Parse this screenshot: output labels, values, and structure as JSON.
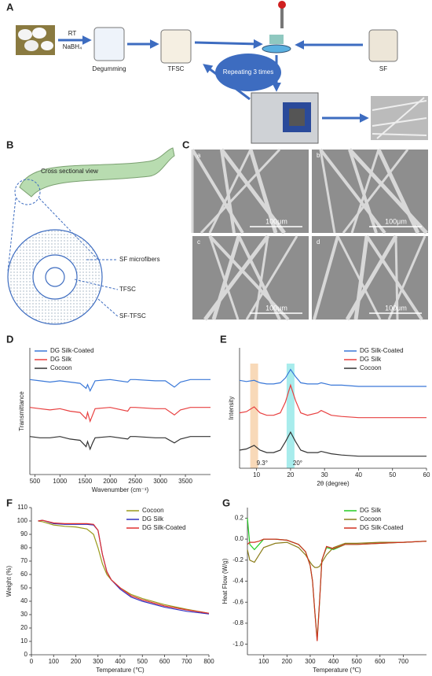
{
  "figure": {
    "A": {
      "label": "A",
      "rt": "RT",
      "reagent": "NaBH₄",
      "degumming": "Degumming",
      "tfsc": "TFSC",
      "sf": "SF",
      "repeat": "Repeating 3 times"
    },
    "B": {
      "label": "B",
      "view": "Cross sectional view",
      "microfibers": "SF microfibers",
      "tfsc": "TFSC",
      "sftfsc": "SF-TFSC"
    },
    "C": {
      "label": "C",
      "images": [
        {
          "label": "a",
          "scale": "100μm"
        },
        {
          "label": "b",
          "scale": "100μm"
        },
        {
          "label": "c",
          "scale": "100μm"
        },
        {
          "label": "d",
          "scale": "100μm"
        }
      ]
    }
  },
  "chart_data": [
    {
      "type": "line",
      "label": "D",
      "xlabel": "Wavenumber (cm⁻¹)",
      "ylabel": "Transmittance",
      "legend": "upper left",
      "xlim": [
        400,
        4000
      ],
      "xticks": [
        500,
        1000,
        1500,
        2000,
        2500,
        3000,
        3500
      ],
      "ylim": [
        0,
        10
      ],
      "x": [
        400,
        600,
        800,
        1000,
        1200,
        1400,
        1520,
        1550,
        1600,
        1650,
        1700,
        2000,
        2350,
        2400,
        2500,
        2900,
        3100,
        3280,
        3400,
        3600,
        4000
      ],
      "series": [
        {
          "name": "DG Silk-Coated",
          "color": "#3a78d8",
          "values": [
            7.5,
            7.4,
            7.3,
            7.4,
            7.3,
            7.2,
            6.8,
            7.1,
            6.6,
            7.0,
            7.4,
            7.5,
            7.3,
            7.5,
            7.5,
            7.4,
            7.4,
            6.9,
            7.3,
            7.5,
            7.5
          ]
        },
        {
          "name": "DG Silk",
          "color": "#e84040",
          "values": [
            5.3,
            5.2,
            5.1,
            5.2,
            5.0,
            4.9,
            4.4,
            4.9,
            4.2,
            4.7,
            5.2,
            5.3,
            5.0,
            5.3,
            5.3,
            5.2,
            5.2,
            4.7,
            5.1,
            5.3,
            5.3
          ]
        },
        {
          "name": "Cocoon",
          "color": "#333333",
          "values": [
            3.0,
            2.9,
            2.9,
            3.0,
            2.8,
            2.7,
            2.2,
            2.6,
            2.0,
            2.5,
            2.9,
            3.0,
            2.8,
            3.0,
            3.0,
            2.9,
            2.9,
            2.5,
            2.8,
            3.0,
            3.0
          ]
        }
      ]
    },
    {
      "type": "line",
      "label": "E",
      "xlabel": "2θ (degree)",
      "ylabel": "Intensity",
      "legend": "upper right",
      "xlim": [
        5,
        60
      ],
      "xticks": [
        10,
        20,
        30,
        40,
        50,
        60
      ],
      "ylim": [
        0,
        10
      ],
      "highlights": [
        {
          "x": 9.3,
          "label": "9.3°",
          "color": "#f8d9b8"
        },
        {
          "x": 20,
          "label": "20°",
          "color": "#a8ecec"
        }
      ],
      "x": [
        5,
        7,
        9.3,
        11,
        13,
        15,
        17,
        18.5,
        20,
        21.5,
        23,
        25,
        28,
        29,
        32,
        35,
        40,
        45,
        50,
        55,
        60
      ],
      "series": [
        {
          "name": "DG Silk-Coated",
          "color": "#3a78d8",
          "values": [
            7.3,
            7.2,
            7.3,
            7.1,
            7.0,
            7.0,
            7.1,
            7.5,
            8.2,
            7.6,
            7.1,
            7.0,
            7.0,
            7.1,
            6.9,
            6.9,
            6.8,
            6.8,
            6.8,
            6.8,
            6.8
          ]
        },
        {
          "name": "DG Silk",
          "color": "#e84040",
          "values": [
            4.6,
            4.7,
            5.1,
            4.6,
            4.4,
            4.4,
            4.6,
            5.5,
            6.9,
            5.6,
            4.6,
            4.4,
            4.6,
            4.8,
            4.4,
            4.3,
            4.2,
            4.2,
            4.2,
            4.2,
            4.2
          ]
        },
        {
          "name": "Cocoon",
          "color": "#333333",
          "values": [
            1.5,
            1.6,
            1.9,
            1.5,
            1.3,
            1.3,
            1.5,
            2.2,
            3.0,
            2.2,
            1.5,
            1.3,
            1.3,
            1.4,
            1.2,
            1.1,
            1.0,
            1.0,
            1.0,
            1.0,
            1.0
          ]
        }
      ]
    },
    {
      "type": "line",
      "label": "F",
      "xlabel": "Temperature (℃)",
      "ylabel": "Weight (%)",
      "legend": "upper right",
      "xlim": [
        0,
        800
      ],
      "xticks": [
        0,
        100,
        200,
        300,
        400,
        500,
        600,
        700,
        800
      ],
      "ylim": [
        0,
        110
      ],
      "yticks": [
        0,
        10,
        20,
        30,
        40,
        50,
        60,
        70,
        80,
        90,
        100,
        110
      ],
      "x": [
        30,
        50,
        100,
        150,
        200,
        250,
        280,
        300,
        320,
        340,
        360,
        400,
        450,
        500,
        600,
        700,
        800
      ],
      "series": [
        {
          "name": "Cocoon",
          "color": "#9a9a1a",
          "values": [
            100,
            99.5,
            97,
            96,
            95.5,
            94,
            90,
            80,
            68,
            60,
            56,
            50,
            45,
            42,
            37.5,
            34,
            31
          ]
        },
        {
          "name": "DG Silk",
          "color": "#3030c0",
          "values": [
            100,
            100.5,
            98,
            97.5,
            97.5,
            97.5,
            97,
            93,
            75,
            62,
            56,
            49,
            43,
            40,
            35.5,
            32.5,
            30.5
          ]
        },
        {
          "name": "DG Silk-Coated",
          "color": "#e03030",
          "values": [
            100,
            100.5,
            98.5,
            98,
            98,
            98,
            97.5,
            93,
            75,
            62,
            56,
            50,
            44,
            41,
            36.5,
            33.5,
            31
          ]
        }
      ]
    },
    {
      "type": "line",
      "label": "G",
      "xlabel": "Temperature (℃)",
      "ylabel": "Heat Flow (W/g)",
      "legend": "upper right",
      "xlim": [
        30,
        800
      ],
      "xticks": [
        100,
        200,
        300,
        400,
        500,
        600,
        700
      ],
      "ylim": [
        -1.1,
        0.3
      ],
      "yticks": [
        0.2,
        {
          "value": 0,
          "label": "0.0"
        },
        -0.2,
        -0.4,
        -0.6,
        -0.8,
        {
          "value": -1,
          "label": "-1.0"
        }
      ],
      "x": [
        30,
        40,
        60,
        80,
        100,
        150,
        200,
        250,
        280,
        300,
        310,
        320,
        330,
        340,
        350,
        370,
        400,
        450,
        500,
        600,
        700,
        800
      ],
      "series": [
        {
          "name": "DG Silk",
          "color": "#22cc22",
          "values": [
            0.2,
            -0.05,
            -0.1,
            -0.05,
            0,
            0,
            -0.01,
            -0.05,
            -0.12,
            -0.25,
            -0.4,
            -0.7,
            -0.95,
            -0.6,
            -0.2,
            -0.08,
            -0.1,
            -0.05,
            -0.05,
            -0.04,
            -0.03,
            -0.02
          ]
        },
        {
          "name": "Cocoon",
          "color": "#8b7d1a",
          "values": [
            -0.1,
            -0.2,
            -0.22,
            -0.15,
            -0.08,
            -0.04,
            -0.03,
            -0.08,
            -0.15,
            -0.22,
            -0.25,
            -0.27,
            -0.27,
            -0.26,
            -0.22,
            -0.15,
            -0.08,
            -0.04,
            -0.04,
            -0.03,
            -0.03,
            -0.02
          ]
        },
        {
          "name": "DG Silk-Coated",
          "color": "#d03020",
          "values": [
            -0.05,
            -0.03,
            -0.03,
            -0.02,
            0,
            0,
            -0.01,
            -0.05,
            -0.12,
            -0.25,
            -0.4,
            -0.7,
            -0.97,
            -0.6,
            -0.2,
            -0.07,
            -0.09,
            -0.05,
            -0.05,
            -0.04,
            -0.03,
            -0.02
          ]
        }
      ]
    }
  ]
}
